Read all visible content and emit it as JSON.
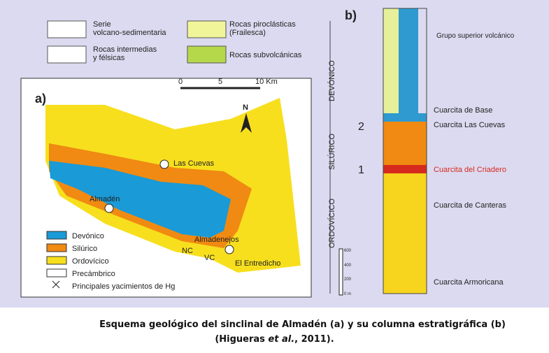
{
  "legend": {
    "items": [
      {
        "label": [
          "Serie",
          "volcano-sedimentaria"
        ]
      },
      {
        "label": [
          "Rocas intermedias",
          "y félsicas"
        ]
      },
      {
        "label": [
          "Rocas piroclásticas",
          "(Frailesca)"
        ]
      },
      {
        "label": [
          "Rocas subvolcánicas"
        ]
      }
    ]
  },
  "map": {
    "panel": "a)",
    "scale": [
      "0",
      "5",
      "10 Km"
    ],
    "north": "N",
    "places": [
      "Las Cuevas",
      "Almadén",
      "Almadenejos",
      "NC",
      "VC",
      "El Entredicho"
    ],
    "legend": [
      "Devónico",
      "Silúrico",
      "Ordovícico",
      "Precámbrico",
      "Principales yacimientos de Hg"
    ]
  },
  "column": {
    "panel": "b)",
    "periods": [
      "DEVÓNICO",
      "SILÚRICO",
      "ORDOVÍCICO"
    ],
    "levels": [
      "2",
      "1"
    ],
    "scale": [
      "600",
      "400",
      "200",
      "0 m"
    ],
    "units": [
      "Grupo superior volcánico",
      "Cuarcita de Base",
      "Cuarcita Las Cuevas",
      "Cuarcita del Criadero",
      "Cuarcita de Canteras",
      "Cuarcita Armoricana"
    ]
  },
  "caption": {
    "line1": "Esquema geológico del sinclinal de Almadén (a) y su columna estratigráfica (b)",
    "line2_start": "(Higueras ",
    "line2_italic": "et al.",
    "line2_end": ", 2011)."
  }
}
